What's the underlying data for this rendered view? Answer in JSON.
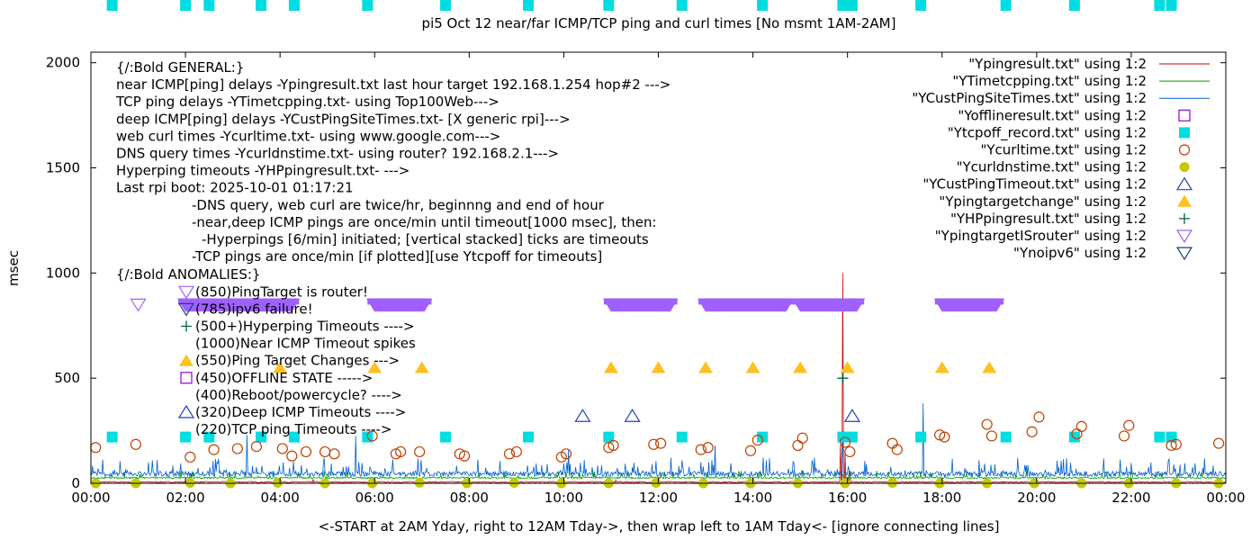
{
  "chart_data": {
    "type": "scatter",
    "title": "pi5 Oct 12  near/far ICMP/TCP ping and curl times [No msmt 1AM-2AM]",
    "xlabel": "<-START at 2AM Yday, right to 12AM Tday->, then wrap left to 1AM Tday<- [ignore connecting lines]",
    "ylabel": "msec",
    "xlim": [
      0,
      24
    ],
    "ylim": [
      0,
      2050
    ],
    "x_ticks": [
      0,
      2,
      4,
      6,
      8,
      10,
      12,
      14,
      16,
      18,
      20,
      22,
      24
    ],
    "x_tick_labels": [
      "00:00",
      "02:00",
      "04:00",
      "06:00",
      "08:00",
      "10:00",
      "12:00",
      "14:00",
      "16:00",
      "18:00",
      "20:00",
      "22:00",
      "00:00"
    ],
    "y_ticks": [
      0,
      500,
      1000,
      1500,
      2000
    ],
    "y_tick_labels": [
      "0",
      "500",
      "1000",
      "1500",
      "2000"
    ],
    "grid": false,
    "legend_position": "top-right",
    "annotation_lines": [
      "{/:Bold GENERAL:}",
      "near ICMP[ping] delays -Ypingresult.txt last hour target 192.168.1.254 hop#2 --->",
      "TCP ping delays -YTimetcpping.txt- using Top100Web--->",
      "deep ICMP[ping] delays -YCustPingSiteTimes.txt- [X generic rpi]--->",
      "web curl times -Ycurltime.txt- using www.google.com--->",
      "DNS query times -Ycurldnstime.txt- using router? 192.168.2.1--->",
      "Hyperping timeouts -YHPpingresult.txt- --->",
      "Last rpi boot: 2025-10-01 01:17:21",
      "-DNS query, web curl are twice/hr, beginnng and end of hour",
      "-near,deep ICMP pings are once/min until timeout[1000 msec], then:",
      "-Hyperpings [6/min] initiated; [vertical stacked] ticks are timeouts",
      "-TCP pings are once/min [if plotted][use Ytcpoff for timeouts]",
      "{/:Bold ANOMALIES:}",
      "(850)PingTarget is router!",
      "(785)ipv6 failure!",
      "(500+)Hyperping Timeouts ---->",
      "(1000)Near ICMP Timeout spikes",
      "(550)Ping Target Changes --->",
      "(450)OFFLINE STATE ----->",
      "(400)Reboot/powercycle? ---->",
      "(320)Deep ICMP Timeouts ---->",
      "(220)TCP ping Timeouts ---->"
    ],
    "series": [
      {
        "name": "\"Ypingresult.txt\" using 1:2",
        "style": "line",
        "color": "#cc0000",
        "baseline": 3,
        "spikes": [
          [
            15.9,
            1000
          ],
          [
            15.85,
            180
          ],
          [
            15.95,
            140
          ],
          [
            16.05,
            60
          ],
          [
            4.7,
            20
          ],
          [
            11.1,
            15
          ]
        ]
      },
      {
        "name": "\"YTimetcpping.txt\" using 1:2",
        "style": "line",
        "color": "#009e00",
        "baseline": 22
      },
      {
        "name": "\"YCustPingSiteTimes.txt\" using 1:2",
        "style": "line",
        "color": "#0060d0",
        "baseline": 32,
        "spikes": [
          [
            17.6,
            380
          ],
          [
            15.9,
            250
          ],
          [
            3.3,
            230
          ],
          [
            5.6,
            225
          ],
          [
            13.2,
            180
          ],
          [
            10.1,
            160
          ]
        ]
      },
      {
        "name": "\"Yofflineresult.txt\" using 1:2",
        "style": "open-square",
        "color": "#9400d3",
        "points": []
      },
      {
        "name": "\"Ytcpoff_record.txt\" using 1:2",
        "style": "filled-square",
        "color": "#00dde0",
        "y": 220,
        "x": [
          0.45,
          2.0,
          2.5,
          3.6,
          4.3,
          5.85,
          7.5,
          9.25,
          10.95,
          12.5,
          14.2,
          15.9,
          16.1,
          17.55,
          19.35,
          20.8,
          22.6,
          22.85
        ]
      },
      {
        "name": "\"Ycurltime.txt\" using 1:2",
        "style": "open-circle",
        "color": "#c04000",
        "x": [
          0.1,
          0.95,
          2.1,
          2.6,
          3.1,
          3.5,
          4.05,
          4.25,
          4.55,
          4.95,
          5.15,
          5.95,
          6.45,
          6.55,
          6.95,
          7.8,
          7.9,
          8.85,
          9.0,
          9.95,
          10.05,
          10.95,
          11.05,
          11.9,
          12.05,
          12.9,
          13.05,
          13.95,
          14.1,
          14.95,
          15.05,
          15.95,
          16.05,
          16.95,
          17.05,
          17.95,
          18.05,
          18.95,
          19.05,
          19.9,
          20.05,
          20.85,
          20.95,
          21.85,
          21.95,
          22.85,
          22.95,
          23.85
        ],
        "y": [
          170,
          185,
          125,
          160,
          165,
          175,
          165,
          130,
          150,
          150,
          140,
          225,
          140,
          150,
          150,
          140,
          130,
          140,
          150,
          125,
          140,
          170,
          180,
          185,
          190,
          160,
          170,
          155,
          205,
          180,
          215,
          195,
          150,
          190,
          160,
          230,
          220,
          280,
          225,
          245,
          315,
          235,
          270,
          225,
          275,
          180,
          185,
          190
        ]
      },
      {
        "name": "\"Ycurldnstime.txt\" using 1:2",
        "style": "filled-circle",
        "color": "#c8c800",
        "x": [
          0.1,
          0.95,
          2.1,
          2.95,
          3.95,
          4.95,
          5.95,
          6.95,
          7.95,
          8.95,
          9.95,
          10.95,
          11.95,
          12.95,
          13.95,
          14.95,
          15.95,
          16.95,
          17.95,
          18.95,
          19.95,
          20.95,
          21.95,
          22.95,
          23.85
        ],
        "y": [
          0,
          0,
          2,
          0,
          2,
          0,
          0,
          3,
          0,
          2,
          0,
          0,
          2,
          0,
          0,
          0,
          0,
          2,
          0,
          0,
          0,
          0,
          0,
          0,
          0
        ]
      },
      {
        "name": "\"YCustPingTimeout.txt\" using 1:2",
        "style": "open-triangle-up",
        "color": "#2040c0",
        "x": [
          10.4,
          11.45,
          16.1
        ],
        "y": [
          320,
          320,
          320
        ]
      },
      {
        "name": "\"Ypingtargetchange\" using 1:2",
        "style": "filled-triangle-up",
        "color": "#ffc020",
        "x": [
          4.0,
          6.0,
          7.0,
          11.0,
          12.0,
          13.0,
          14.0,
          15.0,
          16.0,
          18.0,
          19.0
        ],
        "y": [
          550,
          550,
          550,
          550,
          550,
          550,
          550,
          550,
          550,
          550,
          550
        ]
      },
      {
        "name": "\"YHPpingresult.txt\" using 1:2",
        "style": "plus",
        "color": "#006040",
        "x": [
          15.9
        ],
        "y": [
          500
        ]
      },
      {
        "name": "\"YpingtargetISrouter\" using 1:2",
        "style": "open-triangle-down",
        "color": "#a060ff",
        "x": [
          1.0
        ],
        "y": [
          850
        ],
        "runs": [
          [
            2.0,
            4.25
          ],
          [
            6.0,
            7.05
          ],
          [
            11.0,
            12.25
          ],
          [
            13.0,
            14.7
          ],
          [
            15.0,
            16.2
          ],
          [
            18.0,
            19.15
          ]
        ],
        "run_y": 850
      },
      {
        "name": "\"Ynoipv6\" using 1:2",
        "style": "open-triangle-down",
        "color": "#1a4080",
        "points": []
      }
    ]
  }
}
